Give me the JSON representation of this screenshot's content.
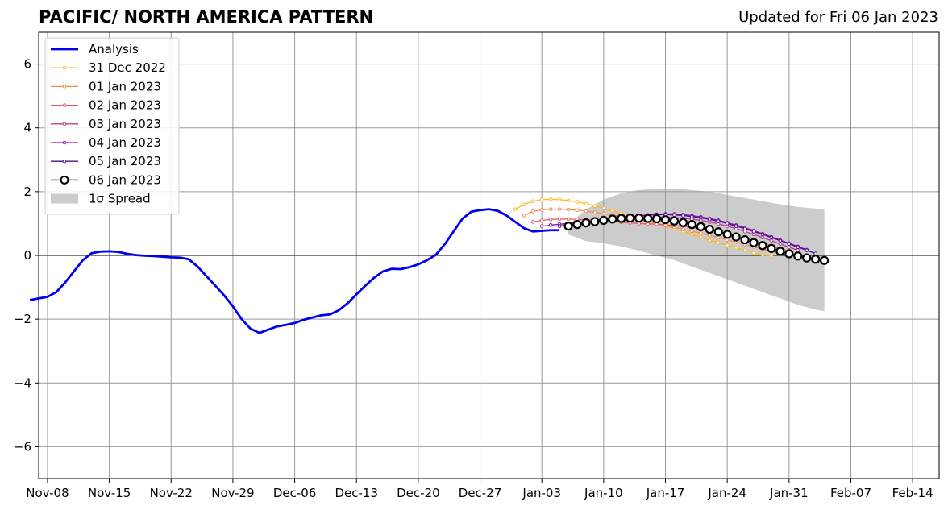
{
  "header": {
    "title": "PACIFIC/ NORTH AMERICA PATTERN",
    "updated": "Updated for Fri 06 Jan 2023"
  },
  "chart_data": {
    "type": "line",
    "x_axis": {
      "type": "date",
      "range": [
        "2022-11-07",
        "2023-02-17"
      ],
      "ticks": [
        "Nov-08",
        "Nov-15",
        "Nov-22",
        "Nov-29",
        "Dec-06",
        "Dec-13",
        "Dec-20",
        "Dec-27",
        "Jan-03",
        "Jan-10",
        "Jan-17",
        "Jan-24",
        "Jan-31",
        "Feb-07",
        "Feb-14"
      ],
      "tick_dates": [
        "2022-11-08",
        "2022-11-15",
        "2022-11-22",
        "2022-11-29",
        "2022-12-06",
        "2022-12-13",
        "2022-12-20",
        "2022-12-27",
        "2023-01-03",
        "2023-01-10",
        "2023-01-17",
        "2023-01-24",
        "2023-01-31",
        "2023-02-07",
        "2023-02-14"
      ]
    },
    "y_axis": {
      "range": [
        -7,
        7
      ],
      "ticks": [
        "6",
        "4",
        "2",
        "0",
        "−2",
        "−4",
        "−6"
      ],
      "tick_values": [
        6,
        4,
        2,
        0,
        -2,
        -4,
        -6
      ]
    },
    "grid": true,
    "zero_line": true,
    "legend": {
      "position": "top-left",
      "spread_label": "1σ Spread"
    },
    "spread": {
      "color": "#cccccc",
      "x": [
        "2023-01-06",
        "2023-01-08",
        "2023-01-10",
        "2023-01-12",
        "2023-01-14",
        "2023-01-16",
        "2023-01-18",
        "2023-01-20",
        "2023-01-22",
        "2023-01-24",
        "2023-01-26",
        "2023-01-28",
        "2023-01-30",
        "2023-02-01",
        "2023-02-03",
        "2023-02-04"
      ],
      "upper": [
        0.95,
        1.45,
        1.75,
        1.95,
        2.05,
        2.1,
        2.1,
        2.05,
        2.0,
        1.9,
        1.8,
        1.7,
        1.6,
        1.52,
        1.47,
        1.45
      ],
      "lower": [
        0.65,
        0.45,
        0.38,
        0.28,
        0.15,
        0.0,
        -0.15,
        -0.35,
        -0.55,
        -0.75,
        -0.95,
        -1.15,
        -1.35,
        -1.55,
        -1.7,
        -1.75
      ]
    },
    "series": [
      {
        "name": "Analysis",
        "color": "#0000ee",
        "x": [
          "2022-11-06",
          "2022-11-07",
          "2022-11-08",
          "2022-11-09",
          "2022-11-10",
          "2022-11-11",
          "2022-11-12",
          "2022-11-13",
          "2022-11-14",
          "2022-11-15",
          "2022-11-16",
          "2022-11-17",
          "2022-11-18",
          "2022-11-19",
          "2022-11-20",
          "2022-11-21",
          "2022-11-22",
          "2022-11-23",
          "2022-11-24",
          "2022-11-25",
          "2022-11-26",
          "2022-11-27",
          "2022-11-28",
          "2022-11-29",
          "2022-11-30",
          "2022-12-01",
          "2022-12-02",
          "2022-12-03",
          "2022-12-04",
          "2022-12-05",
          "2022-12-06",
          "2022-12-07",
          "2022-12-08",
          "2022-12-09",
          "2022-12-10",
          "2022-12-11",
          "2022-12-12",
          "2022-12-13",
          "2022-12-14",
          "2022-12-15",
          "2022-12-16",
          "2022-12-17",
          "2022-12-18",
          "2022-12-19",
          "2022-12-20",
          "2022-12-21",
          "2022-12-22",
          "2022-12-23",
          "2022-12-24",
          "2022-12-25",
          "2022-12-26",
          "2022-12-27",
          "2022-12-28",
          "2022-12-29",
          "2022-12-30",
          "2022-12-31",
          "2023-01-01",
          "2023-01-02",
          "2023-01-03",
          "2023-01-04",
          "2023-01-05"
        ],
        "y": [
          -1.4,
          -1.35,
          -1.3,
          -1.15,
          -0.85,
          -0.5,
          -0.15,
          0.07,
          0.12,
          0.13,
          0.11,
          0.05,
          0.01,
          -0.01,
          -0.02,
          -0.04,
          -0.06,
          -0.07,
          -0.12,
          -0.35,
          -0.65,
          -0.95,
          -1.25,
          -1.6,
          -2.0,
          -2.3,
          -2.43,
          -2.33,
          -2.23,
          -2.18,
          -2.12,
          -2.02,
          -1.95,
          -1.88,
          -1.85,
          -1.72,
          -1.5,
          -1.22,
          -0.95,
          -0.7,
          -0.5,
          -0.42,
          -0.43,
          -0.37,
          -0.28,
          -0.15,
          0.02,
          0.35,
          0.75,
          1.15,
          1.37,
          1.42,
          1.45,
          1.4,
          1.25,
          1.05,
          0.85,
          0.75,
          0.77,
          0.79,
          0.79
        ]
      },
      {
        "name": "31 Dec 2022",
        "color": "#fdb826",
        "x": [
          "2022-12-31",
          "2023-01-01",
          "2023-01-02",
          "2023-01-03",
          "2023-01-04",
          "2023-01-05",
          "2023-01-06",
          "2023-01-07",
          "2023-01-08",
          "2023-01-09",
          "2023-01-10",
          "2023-01-11",
          "2023-01-12",
          "2023-01-13",
          "2023-01-14",
          "2023-01-15",
          "2023-01-16",
          "2023-01-17",
          "2023-01-18",
          "2023-01-19",
          "2023-01-20",
          "2023-01-21",
          "2023-01-22",
          "2023-01-23",
          "2023-01-24",
          "2023-01-25",
          "2023-01-26",
          "2023-01-27",
          "2023-01-28",
          "2023-01-29"
        ],
        "y": [
          1.45,
          1.6,
          1.7,
          1.75,
          1.76,
          1.75,
          1.72,
          1.68,
          1.62,
          1.55,
          1.48,
          1.4,
          1.32,
          1.24,
          1.16,
          1.08,
          1.0,
          0.92,
          0.84,
          0.75,
          0.66,
          0.57,
          0.48,
          0.4,
          0.32,
          0.24,
          0.16,
          0.08,
          0.02,
          -0.02
        ]
      },
      {
        "name": "01 Jan 2023",
        "color": "#f48a4b",
        "x": [
          "2023-01-01",
          "2023-01-02",
          "2023-01-03",
          "2023-01-04",
          "2023-01-05",
          "2023-01-06",
          "2023-01-07",
          "2023-01-08",
          "2023-01-09",
          "2023-01-10",
          "2023-01-11",
          "2023-01-12",
          "2023-01-13",
          "2023-01-14",
          "2023-01-15",
          "2023-01-16",
          "2023-01-17",
          "2023-01-18",
          "2023-01-19",
          "2023-01-20",
          "2023-01-21",
          "2023-01-22",
          "2023-01-23",
          "2023-01-24",
          "2023-01-25",
          "2023-01-26",
          "2023-01-27",
          "2023-01-28",
          "2023-01-29",
          "2023-01-30"
        ],
        "y": [
          1.25,
          1.38,
          1.43,
          1.45,
          1.45,
          1.44,
          1.42,
          1.39,
          1.35,
          1.31,
          1.27,
          1.22,
          1.17,
          1.12,
          1.06,
          1.0,
          0.94,
          0.88,
          0.82,
          0.76,
          0.7,
          0.63,
          0.56,
          0.49,
          0.42,
          0.34,
          0.27,
          0.2,
          0.13,
          0.06
        ]
      },
      {
        "name": "02 Jan 2023",
        "color": "#e05b6a",
        "x": [
          "2023-01-02",
          "2023-01-03",
          "2023-01-04",
          "2023-01-05",
          "2023-01-06",
          "2023-01-07",
          "2023-01-08",
          "2023-01-09",
          "2023-01-10",
          "2023-01-11",
          "2023-01-12",
          "2023-01-13",
          "2023-01-14",
          "2023-01-15",
          "2023-01-16",
          "2023-01-17",
          "2023-01-18",
          "2023-01-19",
          "2023-01-20",
          "2023-01-21",
          "2023-01-22",
          "2023-01-23",
          "2023-01-24",
          "2023-01-25",
          "2023-01-26",
          "2023-01-27",
          "2023-01-28",
          "2023-01-29",
          "2023-01-30",
          "2023-01-31"
        ],
        "y": [
          1.05,
          1.1,
          1.13,
          1.14,
          1.14,
          1.13,
          1.12,
          1.1,
          1.08,
          1.06,
          1.04,
          1.02,
          1.0,
          0.99,
          0.98,
          0.96,
          0.94,
          0.91,
          0.88,
          0.84,
          0.79,
          0.74,
          0.68,
          0.61,
          0.54,
          0.46,
          0.38,
          0.3,
          0.22,
          0.14
        ]
      },
      {
        "name": "03 Jan 2023",
        "color": "#b83e8f",
        "x": [
          "2023-01-03",
          "2023-01-04",
          "2023-01-05",
          "2023-01-06",
          "2023-01-07",
          "2023-01-08",
          "2023-01-09",
          "2023-01-10",
          "2023-01-11",
          "2023-01-12",
          "2023-01-13",
          "2023-01-14",
          "2023-01-15",
          "2023-01-16",
          "2023-01-17",
          "2023-01-18",
          "2023-01-19",
          "2023-01-20",
          "2023-01-21",
          "2023-01-22",
          "2023-01-23",
          "2023-01-24",
          "2023-01-25",
          "2023-01-26",
          "2023-01-27",
          "2023-01-28",
          "2023-01-29",
          "2023-01-30",
          "2023-01-31",
          "2023-02-01"
        ],
        "y": [
          0.92,
          0.95,
          0.98,
          1.0,
          1.02,
          1.04,
          1.06,
          1.08,
          1.1,
          1.12,
          1.14,
          1.16,
          1.18,
          1.2,
          1.2,
          1.19,
          1.17,
          1.14,
          1.1,
          1.05,
          0.99,
          0.92,
          0.84,
          0.75,
          0.66,
          0.56,
          0.46,
          0.36,
          0.26,
          0.16
        ]
      },
      {
        "name": "04 Jan 2023",
        "color": "#8d14b5",
        "x": [
          "2023-01-04",
          "2023-01-05",
          "2023-01-06",
          "2023-01-07",
          "2023-01-08",
          "2023-01-09",
          "2023-01-10",
          "2023-01-11",
          "2023-01-12",
          "2023-01-13",
          "2023-01-14",
          "2023-01-15",
          "2023-01-16",
          "2023-01-17",
          "2023-01-18",
          "2023-01-19",
          "2023-01-20",
          "2023-01-21",
          "2023-01-22",
          "2023-01-23",
          "2023-01-24",
          "2023-01-25",
          "2023-01-26",
          "2023-01-27",
          "2023-01-28",
          "2023-01-29",
          "2023-01-30",
          "2023-01-31",
          "2023-02-01",
          "2023-02-02"
        ],
        "y": [
          0.95,
          0.98,
          1.0,
          1.03,
          1.06,
          1.09,
          1.12,
          1.15,
          1.18,
          1.21,
          1.24,
          1.27,
          1.29,
          1.3,
          1.3,
          1.28,
          1.25,
          1.21,
          1.16,
          1.1,
          1.03,
          0.95,
          0.87,
          0.78,
          0.68,
          0.58,
          0.48,
          0.38,
          0.28,
          0.18
        ]
      },
      {
        "name": "05 Jan 2023",
        "color": "#4b0c8c",
        "x": [
          "2023-01-05",
          "2023-01-06",
          "2023-01-07",
          "2023-01-08",
          "2023-01-09",
          "2023-01-10",
          "2023-01-11",
          "2023-01-12",
          "2023-01-13",
          "2023-01-14",
          "2023-01-15",
          "2023-01-16",
          "2023-01-17",
          "2023-01-18",
          "2023-01-19",
          "2023-01-20",
          "2023-01-21",
          "2023-01-22",
          "2023-01-23",
          "2023-01-24",
          "2023-01-25",
          "2023-01-26",
          "2023-01-27",
          "2023-01-28",
          "2023-01-29",
          "2023-01-30",
          "2023-01-31",
          "2023-02-01",
          "2023-02-02",
          "2023-02-03"
        ],
        "y": [
          0.92,
          0.96,
          1.0,
          1.04,
          1.08,
          1.12,
          1.15,
          1.18,
          1.21,
          1.24,
          1.26,
          1.28,
          1.28,
          1.27,
          1.25,
          1.22,
          1.18,
          1.13,
          1.07,
          1.0,
          0.92,
          0.84,
          0.75,
          0.66,
          0.56,
          0.46,
          0.36,
          0.26,
          0.16,
          0.06
        ]
      },
      {
        "name": "06 Jan 2023",
        "color": "#000000",
        "marker": "open-circle",
        "x": [
          "2023-01-06",
          "2023-01-07",
          "2023-01-08",
          "2023-01-09",
          "2023-01-10",
          "2023-01-11",
          "2023-01-12",
          "2023-01-13",
          "2023-01-14",
          "2023-01-15",
          "2023-01-16",
          "2023-01-17",
          "2023-01-18",
          "2023-01-19",
          "2023-01-20",
          "2023-01-21",
          "2023-01-22",
          "2023-01-23",
          "2023-01-24",
          "2023-01-25",
          "2023-01-26",
          "2023-01-27",
          "2023-01-28",
          "2023-01-29",
          "2023-01-30",
          "2023-01-31",
          "2023-02-01",
          "2023-02-02",
          "2023-02-03",
          "2023-02-04"
        ],
        "y": [
          0.92,
          0.97,
          1.02,
          1.06,
          1.1,
          1.14,
          1.16,
          1.17,
          1.17,
          1.16,
          1.15,
          1.12,
          1.08,
          1.03,
          0.97,
          0.9,
          0.82,
          0.74,
          0.66,
          0.58,
          0.49,
          0.4,
          0.31,
          0.22,
          0.13,
          0.05,
          -0.02,
          -0.08,
          -0.12,
          -0.16
        ]
      }
    ]
  }
}
